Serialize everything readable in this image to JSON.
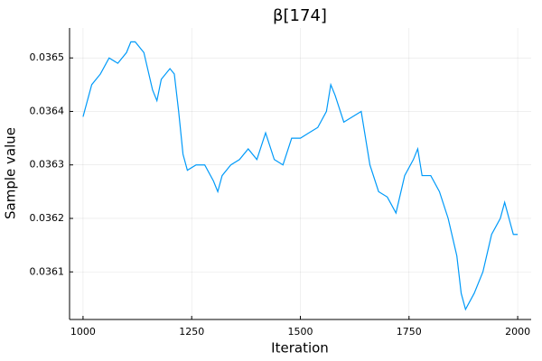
{
  "chart_data": {
    "type": "line",
    "title": "β[174]",
    "x_label": "Iteration",
    "y_label": "Sample value",
    "x": [
      1000,
      1020,
      1040,
      1060,
      1080,
      1100,
      1110,
      1120,
      1140,
      1160,
      1170,
      1180,
      1200,
      1210,
      1220,
      1230,
      1240,
      1260,
      1280,
      1300,
      1310,
      1320,
      1340,
      1360,
      1380,
      1400,
      1420,
      1440,
      1460,
      1480,
      1500,
      1520,
      1540,
      1560,
      1570,
      1580,
      1600,
      1620,
      1640,
      1660,
      1680,
      1700,
      1720,
      1740,
      1760,
      1770,
      1780,
      1800,
      1820,
      1840,
      1860,
      1870,
      1880,
      1900,
      1920,
      1940,
      1960,
      1970,
      1980,
      1990,
      2000
    ],
    "series": [
      {
        "name": "β[174]",
        "color": "#009af9",
        "values": [
          0.03639,
          0.03645,
          0.03647,
          0.0365,
          0.03649,
          0.03651,
          0.03653,
          0.03653,
          0.03651,
          0.03644,
          0.03642,
          0.03646,
          0.03648,
          0.03647,
          0.0364,
          0.03632,
          0.03629,
          0.0363,
          0.0363,
          0.03627,
          0.03625,
          0.03628,
          0.0363,
          0.03631,
          0.03633,
          0.03631,
          0.03636,
          0.03631,
          0.0363,
          0.03635,
          0.03635,
          0.03636,
          0.03637,
          0.0364,
          0.03645,
          0.03643,
          0.03638,
          0.03639,
          0.0364,
          0.0363,
          0.03625,
          0.03624,
          0.03621,
          0.03628,
          0.03631,
          0.03633,
          0.03628,
          0.03628,
          0.03625,
          0.0362,
          0.03613,
          0.03606,
          0.03603,
          0.03606,
          0.0361,
          0.03617,
          0.0362,
          0.03623,
          0.0362,
          0.03617,
          0.03617
        ]
      }
    ],
    "xlim": [
      969,
      2031
    ],
    "ylim": [
      0.036011,
      0.036556
    ],
    "xticks": [
      1000,
      1250,
      1500,
      1750,
      2000
    ],
    "yticks": [
      0.0361,
      0.0362,
      0.0363,
      0.0364,
      0.0365
    ],
    "grid": true
  }
}
